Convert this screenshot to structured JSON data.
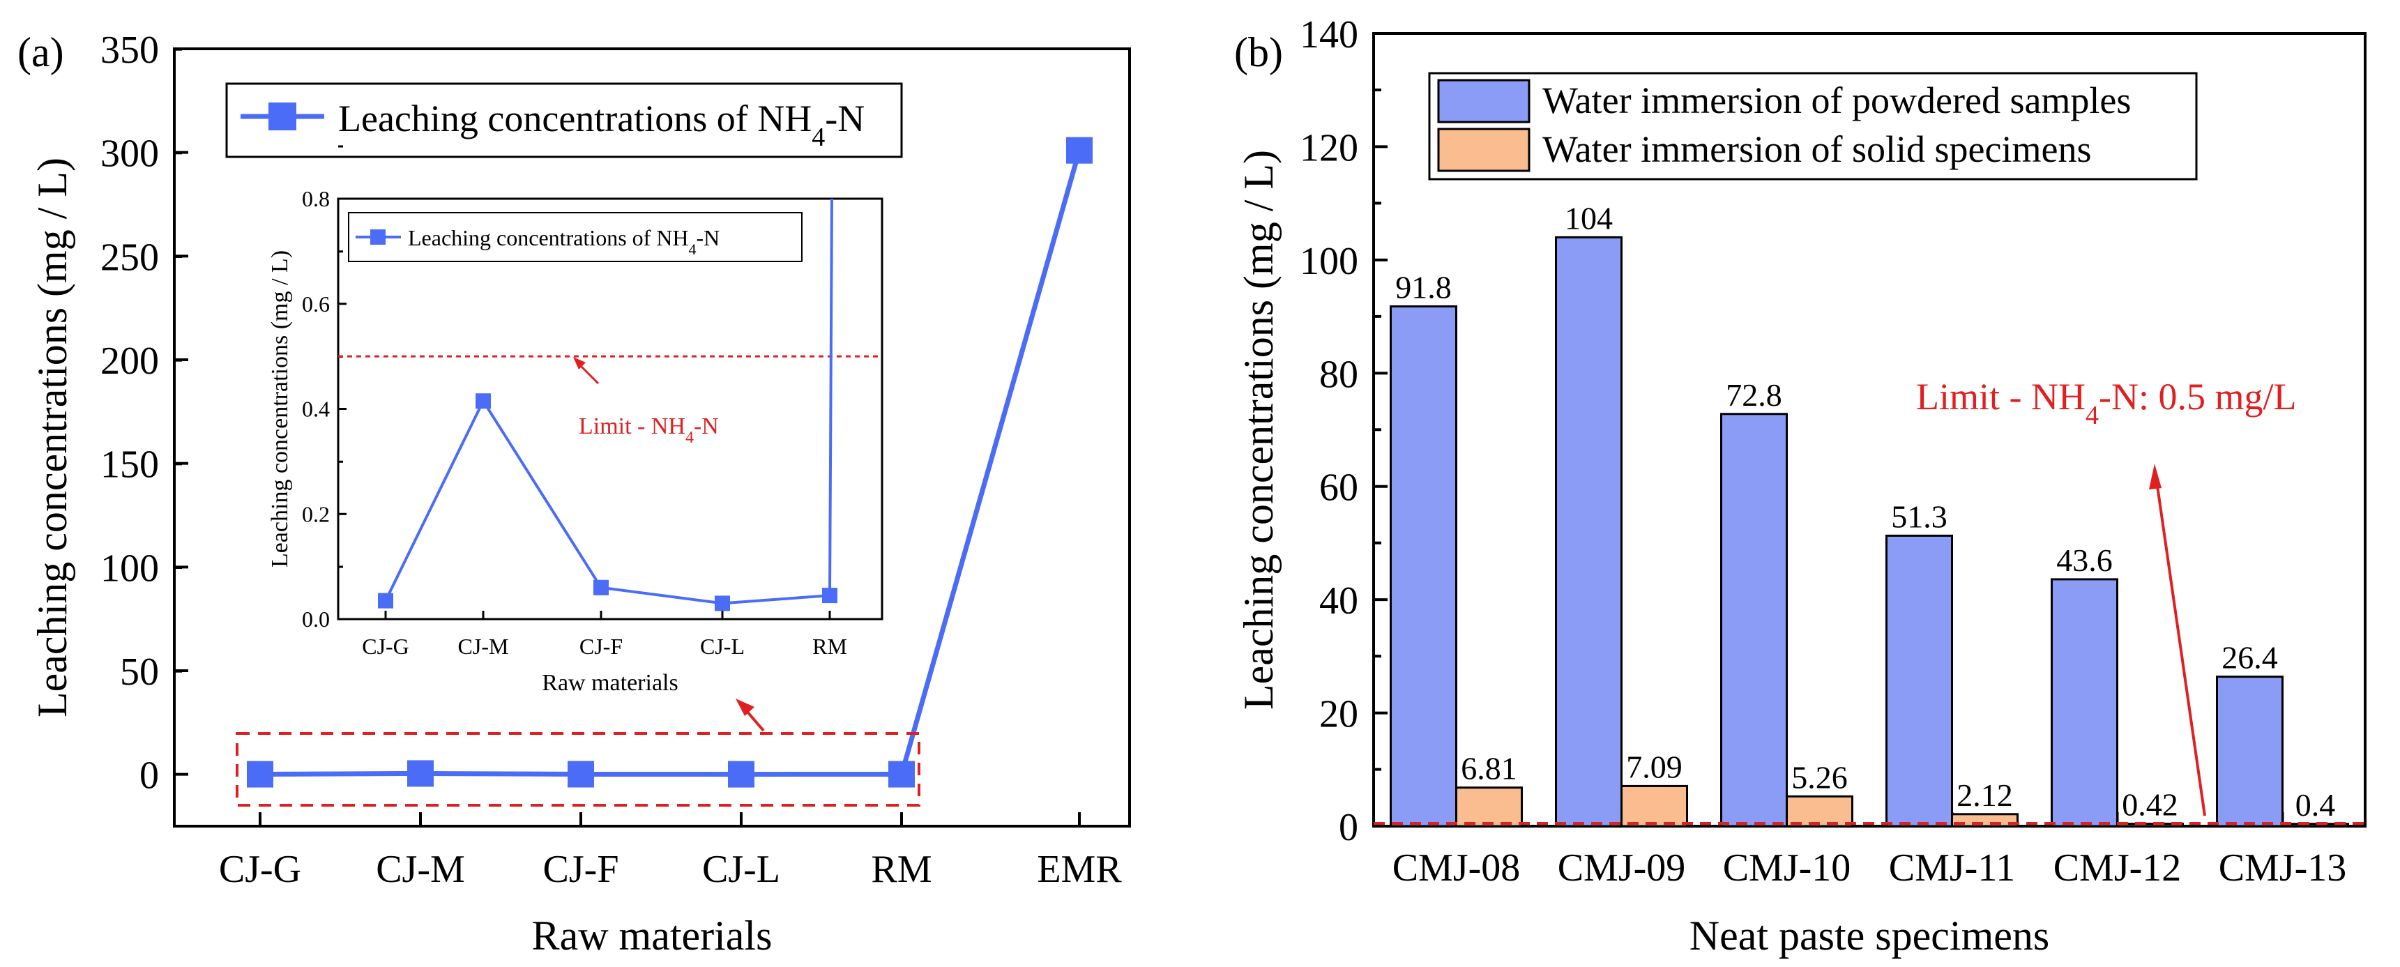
{
  "chart_data": [
    {
      "panel": "(a)",
      "type": "line",
      "xlabel": "Raw materials",
      "ylabel": "Leaching concentrations (mg / L)",
      "categories": [
        "CJ-G",
        "CJ-M",
        "CJ-F",
        "CJ-L",
        "RM",
        "EMR"
      ],
      "series": [
        {
          "name": "Leaching concentrations of NH4-N",
          "legend_main": "Leaching concentrations of NH",
          "legend_sub": "4",
          "legend_tail": "-N",
          "values": [
            0.035,
            0.415,
            0.06,
            0.03,
            0.045,
            301.0
          ],
          "color": "#4a6cf7"
        }
      ],
      "ylim": [
        -25,
        350
      ],
      "yticks": [
        "0",
        "50",
        "100",
        "150",
        "200",
        "250",
        "300",
        "350"
      ],
      "grid": false,
      "legend_position": "top-left",
      "inset": {
        "type": "line",
        "xlabel": "Raw materials",
        "ylabel": "Leaching concentrations (mg / L)",
        "categories": [
          "CJ-G",
          "CJ-M",
          "CJ-F",
          "CJ-L",
          "RM"
        ],
        "values": [
          0.035,
          0.415,
          0.06,
          0.03,
          0.045
        ],
        "ylim": [
          0,
          0.8
        ],
        "yticks": [
          "0.0",
          "0.2",
          "0.4",
          "0.6",
          "0.8"
        ],
        "limit_value": 0.5,
        "limit_label_main": "Limit - NH",
        "limit_label_sub": "4",
        "limit_label_tail": "-N",
        "legend_main": "Leaching concentrations of NH",
        "legend_sub": "4",
        "legend_tail": "-N"
      }
    },
    {
      "panel": "(b)",
      "type": "bar",
      "xlabel": "Neat paste specimens",
      "ylabel": "Leaching concentrations (mg / L)",
      "categories": [
        "CMJ-08",
        "CMJ-09",
        "CMJ-10",
        "CMJ-11",
        "CMJ-12",
        "CMJ-13"
      ],
      "series": [
        {
          "name": "Water immersion of powdered samples",
          "values": [
            91.8,
            104,
            72.8,
            51.3,
            43.6,
            26.4
          ],
          "labels": [
            "91.8",
            "104",
            "72.8",
            "51.3",
            "43.6",
            "26.4"
          ],
          "color": "#8b9cf7"
        },
        {
          "name": "Water immersion of solid specimens",
          "values": [
            6.81,
            7.09,
            5.26,
            2.12,
            0.42,
            0.4
          ],
          "labels": [
            "6.81",
            "7.09",
            "5.26",
            "2.12",
            "0.42",
            "0.4"
          ],
          "color": "#f9bd8f"
        }
      ],
      "ylim": [
        0,
        140
      ],
      "yticks": [
        "0",
        "20",
        "40",
        "60",
        "80",
        "100",
        "120",
        "140"
      ],
      "grid": false,
      "legend_position": "top-left",
      "limit_value": 0.5,
      "limit_label_main": "Limit - NH",
      "limit_label_sub": "4",
      "limit_label_tail": "-N: 0.5 mg/L"
    }
  ]
}
